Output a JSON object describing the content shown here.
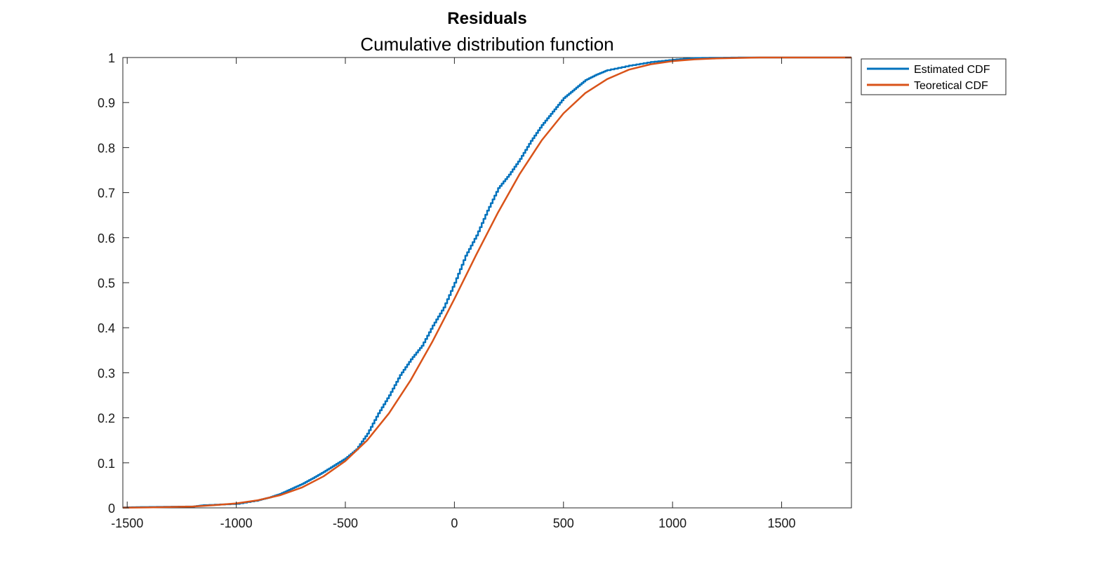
{
  "chart_data": {
    "type": "line",
    "title": "Residuals",
    "subtitle": "Cumulative distribution function",
    "xlabel": "",
    "ylabel": "",
    "xlim": [
      -1520,
      1820
    ],
    "ylim": [
      0,
      1
    ],
    "xticks": [
      -1500,
      -1000,
      -500,
      0,
      500,
      1000,
      1500
    ],
    "xtick_labels": [
      "-1500",
      "-1000",
      "-500",
      "0",
      "500",
      "1000",
      "1500"
    ],
    "yticks": [
      0,
      0.1,
      0.2,
      0.3,
      0.4,
      0.5,
      0.6,
      0.7,
      0.8,
      0.9,
      1
    ],
    "ytick_labels": [
      "0",
      "0.1",
      "0.2",
      "0.3",
      "0.4",
      "0.5",
      "0.6",
      "0.7",
      "0.8",
      "0.9",
      "1"
    ],
    "grid": false,
    "legend_position": "outside-top-right",
    "series": [
      {
        "name": "Estimated CDF",
        "color": "#0072BD",
        "x": [
          -1520,
          -1400,
          -1200,
          -1150,
          -1000,
          -900,
          -850,
          -800,
          -750,
          -700,
          -650,
          -600,
          -550,
          -500,
          -450,
          -400,
          -350,
          -300,
          -250,
          -200,
          -150,
          -100,
          -50,
          0,
          50,
          100,
          150,
          200,
          250,
          300,
          350,
          400,
          450,
          500,
          550,
          600,
          650,
          700,
          800,
          900,
          1000,
          1100,
          1300,
          1820
        ],
        "y": [
          0.001,
          0.002,
          0.003,
          0.006,
          0.009,
          0.017,
          0.023,
          0.031,
          0.042,
          0.053,
          0.066,
          0.08,
          0.095,
          0.11,
          0.13,
          0.165,
          0.21,
          0.25,
          0.295,
          0.33,
          0.36,
          0.405,
          0.445,
          0.5,
          0.56,
          0.605,
          0.66,
          0.71,
          0.74,
          0.775,
          0.815,
          0.85,
          0.88,
          0.91,
          0.93,
          0.95,
          0.962,
          0.972,
          0.982,
          0.99,
          0.995,
          0.999,
          1.0,
          1.0
        ]
      },
      {
        "name": "Teoretical CDF",
        "color": "#D95319",
        "x": [
          -1520,
          -1400,
          -1300,
          -1200,
          -1100,
          -1000,
          -900,
          -800,
          -700,
          -600,
          -500,
          -400,
          -300,
          -200,
          -100,
          0,
          100,
          200,
          300,
          400,
          500,
          600,
          700,
          800,
          900,
          1000,
          1100,
          1200,
          1300,
          1400,
          1600,
          1820
        ],
        "y": [
          0.0004,
          0.001,
          0.002,
          0.003,
          0.006,
          0.01,
          0.017,
          0.028,
          0.045,
          0.07,
          0.104,
          0.15,
          0.21,
          0.284,
          0.37,
          0.464,
          0.562,
          0.656,
          0.742,
          0.816,
          0.876,
          0.921,
          0.952,
          0.973,
          0.985,
          0.992,
          0.996,
          0.998,
          0.999,
          1.0,
          1.0,
          1.0
        ]
      }
    ]
  }
}
